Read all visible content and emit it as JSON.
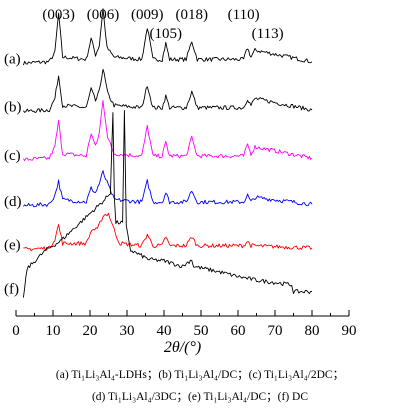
{
  "chart_data": {
    "type": "line",
    "title": "",
    "xlabel": "2θ/(°)",
    "ylabel": "",
    "xlim": [
      0,
      90
    ],
    "xticks": [
      0,
      10,
      20,
      30,
      40,
      50,
      60,
      70,
      80,
      90
    ],
    "grid": false,
    "peak_labels": [
      {
        "text": "(003)",
        "x": 11.5
      },
      {
        "text": "(006)",
        "x": 23.5
      },
      {
        "text": "(009)",
        "x": 35.5
      },
      {
        "text": "(105)",
        "x": 40.5
      },
      {
        "text": "(018)",
        "x": 47.5
      },
      {
        "text": "(110)",
        "x": 61.5
      },
      {
        "text": "(113)",
        "x": 68
      }
    ],
    "series": [
      {
        "name": "(a)",
        "color": "#000000",
        "offset": 5.0,
        "x": [
          2,
          9,
          10.5,
          11.5,
          12.6,
          19,
          20.3,
          21.5,
          22.5,
          23.5,
          24.6,
          26.5,
          34,
          35.5,
          37,
          39.5,
          40.5,
          41.5,
          46,
          47.5,
          49,
          61.5,
          62.6,
          63.5,
          64.6,
          80
        ],
        "y": [
          0.02,
          0.05,
          0.25,
          1.1,
          0.15,
          0.1,
          0.55,
          0.2,
          0.4,
          1.2,
          0.35,
          0.15,
          0.1,
          0.8,
          0.1,
          0.1,
          0.45,
          0.1,
          0.1,
          0.5,
          0.1,
          0.1,
          0.35,
          0.15,
          0.3,
          0.05
        ]
      },
      {
        "name": "(b)",
        "color": "#000000",
        "offset": 3.95,
        "x": [
          2,
          9,
          10.5,
          11.5,
          12.6,
          19,
          20.3,
          21.5,
          22.5,
          23.5,
          24.8,
          26.5,
          34,
          35.5,
          37,
          39.5,
          40.5,
          41.5,
          46,
          47.5,
          49,
          61.5,
          62.6,
          63.5,
          64.6,
          80
        ],
        "y": [
          0.02,
          0.05,
          0.3,
          0.8,
          0.15,
          0.1,
          0.5,
          0.25,
          0.45,
          0.95,
          0.4,
          0.15,
          0.1,
          0.6,
          0.1,
          0.1,
          0.35,
          0.1,
          0.1,
          0.45,
          0.1,
          0.1,
          0.3,
          0.15,
          0.3,
          0.05
        ]
      },
      {
        "name": "(c)",
        "color": "#ff00ff",
        "offset": 2.9,
        "x": [
          2,
          9,
          10.5,
          11.5,
          12.6,
          19,
          20.3,
          21.5,
          22.5,
          23.5,
          24.8,
          26.5,
          34,
          35.5,
          37,
          39.5,
          40.5,
          41.5,
          46,
          47.5,
          49,
          61.5,
          62.6,
          63.5,
          64.6,
          80
        ],
        "y": [
          0.02,
          0.05,
          0.3,
          0.85,
          0.15,
          0.1,
          0.6,
          0.3,
          0.6,
          1.3,
          0.5,
          0.15,
          0.1,
          0.75,
          0.1,
          0.1,
          0.4,
          0.1,
          0.1,
          0.5,
          0.1,
          0.1,
          0.35,
          0.15,
          0.3,
          0.05
        ]
      },
      {
        "name": "(d)",
        "color": "#0000ff",
        "offset": 1.9,
        "x": [
          2,
          9,
          10.5,
          11.5,
          12.6,
          19,
          20.3,
          21.5,
          22.5,
          23.5,
          25,
          26.5,
          34,
          35.5,
          37,
          39.5,
          40.5,
          41.5,
          46,
          47.5,
          49,
          61.5,
          62.6,
          63.5,
          64.6,
          80
        ],
        "y": [
          0.02,
          0.05,
          0.25,
          0.55,
          0.15,
          0.1,
          0.4,
          0.3,
          0.5,
          0.75,
          0.45,
          0.15,
          0.1,
          0.55,
          0.1,
          0.1,
          0.3,
          0.1,
          0.1,
          0.35,
          0.1,
          0.1,
          0.25,
          0.1,
          0.2,
          0.05
        ]
      },
      {
        "name": "(e)",
        "color": "#ff0000",
        "offset": 0.95,
        "x": [
          2,
          9,
          10.5,
          11.5,
          12.6,
          19,
          20.5,
          22,
          23.5,
          25,
          26.5,
          28,
          34,
          35.5,
          37,
          39.5,
          40.5,
          41.5,
          46,
          47.5,
          49,
          61.5,
          62.6,
          63.5,
          80
        ],
        "y": [
          0.02,
          0.05,
          0.25,
          0.55,
          0.15,
          0.15,
          0.45,
          0.45,
          0.75,
          0.8,
          0.45,
          0.15,
          0.1,
          0.35,
          0.1,
          0.1,
          0.3,
          0.1,
          0.1,
          0.3,
          0.1,
          0.1,
          0.2,
          0.1,
          0.05
        ]
      },
      {
        "name": "(f)",
        "color": "#000000",
        "offset": 0.0,
        "x": [
          2,
          3,
          8,
          12,
          16,
          20,
          24,
          25.5,
          26.2,
          26.6,
          27,
          28.8,
          29.3,
          29.8,
          31,
          36,
          40,
          45,
          47.5,
          48,
          55,
          60,
          65,
          70,
          74.5,
          75,
          80
        ],
        "y": [
          -0.1,
          0.55,
          0.95,
          1.15,
          1.45,
          1.75,
          2.05,
          2.2,
          3.95,
          2.05,
          1.55,
          1.55,
          3.95,
          1.45,
          0.95,
          0.75,
          0.72,
          0.6,
          0.75,
          0.6,
          0.48,
          0.38,
          0.3,
          0.25,
          0.2,
          0.05,
          0.05
        ]
      }
    ],
    "legend_caption": {
      "line1": "(a) Ti₁Li₃Al₄-LDHs；(b) Ti₁Li₃Al₄/DC；(c) Ti₁Li₃Al₄/2DC；",
      "line2": "(d) Ti₁Li₃Al₄/3DC；(e) Ti₁Li₃Al₄/DC；(f) DC"
    }
  }
}
